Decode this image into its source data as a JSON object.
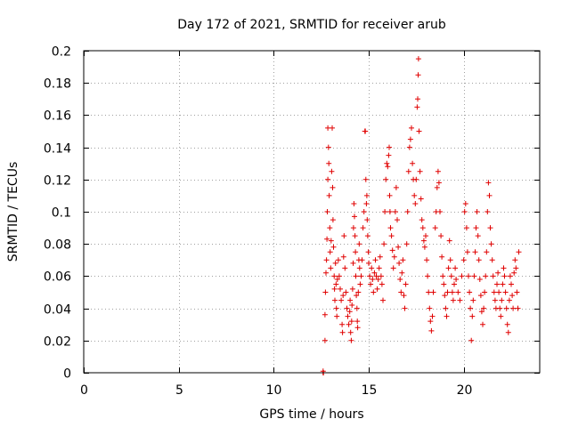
{
  "chart_data": {
    "type": "scatter",
    "title": "Day 172 of 2021, SRMTID for receiver arub",
    "xlabel": "GPS time / hours",
    "ylabel": "SRMTID / TECUs",
    "xlim": [
      0,
      24
    ],
    "ylim": [
      0,
      0.2
    ],
    "x_ticks": [
      0,
      5,
      10,
      15,
      20
    ],
    "x_tick_labels": [
      "0",
      "5",
      "10",
      "15",
      "20"
    ],
    "y_ticks": [
      0,
      0.02,
      0.04,
      0.06,
      0.08,
      0.1,
      0.12,
      0.14,
      0.16,
      0.18,
      0.2
    ],
    "y_tick_labels": [
      "0",
      "0.02",
      "0.04",
      "0.06",
      "0.08",
      "0.1",
      "0.12",
      "0.14",
      "0.16",
      "0.18",
      "0.2"
    ],
    "grid": true,
    "marker": "plus",
    "color": "#e00000",
    "series": [
      {
        "name": "SRMTID",
        "points": [
          [
            12.6,
            0.0
          ],
          [
            12.6,
            0.001
          ],
          [
            12.62,
            0.0
          ],
          [
            12.7,
            0.02
          ],
          [
            12.7,
            0.036
          ],
          [
            12.72,
            0.05
          ],
          [
            12.75,
            0.062
          ],
          [
            12.78,
            0.07
          ],
          [
            12.8,
            0.083
          ],
          [
            12.82,
            0.1
          ],
          [
            12.85,
            0.12
          ],
          [
            12.85,
            0.152
          ],
          [
            12.88,
            0.14
          ],
          [
            12.9,
            0.13
          ],
          [
            12.92,
            0.11
          ],
          [
            12.95,
            0.09
          ],
          [
            12.97,
            0.075
          ],
          [
            13.0,
            0.065
          ],
          [
            13.02,
            0.082
          ],
          [
            13.05,
            0.125
          ],
          [
            13.08,
            0.152
          ],
          [
            13.1,
            0.115
          ],
          [
            13.12,
            0.095
          ],
          [
            13.15,
            0.078
          ],
          [
            13.18,
            0.06
          ],
          [
            13.2,
            0.052
          ],
          [
            13.22,
            0.045
          ],
          [
            13.25,
            0.068
          ],
          [
            13.28,
            0.055
          ],
          [
            13.3,
            0.04
          ],
          [
            13.32,
            0.035
          ],
          [
            13.35,
            0.058
          ],
          [
            13.4,
            0.07
          ],
          [
            13.45,
            0.06
          ],
          [
            13.5,
            0.052
          ],
          [
            13.55,
            0.045
          ],
          [
            13.6,
            0.03
          ],
          [
            13.62,
            0.025
          ],
          [
            13.65,
            0.048
          ],
          [
            13.68,
            0.072
          ],
          [
            13.7,
            0.085
          ],
          [
            13.75,
            0.065
          ],
          [
            13.8,
            0.05
          ],
          [
            13.85,
            0.04
          ],
          [
            13.9,
            0.035
          ],
          [
            13.95,
            0.03
          ],
          [
            14.0,
            0.038
          ],
          [
            14.02,
            0.045
          ],
          [
            14.05,
            0.025
          ],
          [
            14.08,
            0.02
          ],
          [
            14.1,
            0.032
          ],
          [
            14.12,
            0.042
          ],
          [
            14.15,
            0.052
          ],
          [
            14.18,
            0.068
          ],
          [
            14.2,
            0.09
          ],
          [
            14.22,
            0.105
          ],
          [
            14.25,
            0.097
          ],
          [
            14.28,
            0.085
          ],
          [
            14.3,
            0.075
          ],
          [
            14.32,
            0.06
          ],
          [
            14.35,
            0.048
          ],
          [
            14.38,
            0.04
          ],
          [
            14.4,
            0.032
          ],
          [
            14.42,
            0.028
          ],
          [
            14.45,
            0.05
          ],
          [
            14.48,
            0.07
          ],
          [
            14.5,
            0.08
          ],
          [
            14.52,
            0.065
          ],
          [
            14.55,
            0.055
          ],
          [
            14.6,
            0.06
          ],
          [
            14.65,
            0.07
          ],
          [
            14.7,
            0.09
          ],
          [
            14.75,
            0.1
          ],
          [
            14.8,
            0.15
          ],
          [
            14.82,
            0.15
          ],
          [
            14.85,
            0.12
          ],
          [
            14.88,
            0.105
          ],
          [
            14.9,
            0.11
          ],
          [
            14.92,
            0.095
          ],
          [
            14.95,
            0.085
          ],
          [
            14.98,
            0.075
          ],
          [
            15.0,
            0.068
          ],
          [
            15.05,
            0.06
          ],
          [
            15.1,
            0.055
          ],
          [
            15.15,
            0.065
          ],
          [
            15.2,
            0.058
          ],
          [
            15.25,
            0.05
          ],
          [
            15.3,
            0.062
          ],
          [
            15.35,
            0.07
          ],
          [
            15.4,
            0.06
          ],
          [
            15.45,
            0.052
          ],
          [
            15.5,
            0.058
          ],
          [
            15.55,
            0.065
          ],
          [
            15.6,
            0.072
          ],
          [
            15.65,
            0.06
          ],
          [
            15.7,
            0.055
          ],
          [
            15.75,
            0.045
          ],
          [
            15.8,
            0.08
          ],
          [
            15.85,
            0.1
          ],
          [
            15.9,
            0.12
          ],
          [
            15.95,
            0.13
          ],
          [
            16.0,
            0.128
          ],
          [
            16.05,
            0.135
          ],
          [
            16.08,
            0.14
          ],
          [
            16.1,
            0.11
          ],
          [
            16.12,
            0.1
          ],
          [
            16.15,
            0.09
          ],
          [
            16.2,
            0.085
          ],
          [
            16.25,
            0.076
          ],
          [
            16.3,
            0.065
          ],
          [
            16.35,
            0.072
          ],
          [
            16.4,
            0.1
          ],
          [
            16.45,
            0.115
          ],
          [
            16.5,
            0.095
          ],
          [
            16.55,
            0.078
          ],
          [
            16.6,
            0.068
          ],
          [
            16.65,
            0.058
          ],
          [
            16.7,
            0.05
          ],
          [
            16.75,
            0.062
          ],
          [
            16.8,
            0.07
          ],
          [
            16.85,
            0.048
          ],
          [
            16.9,
            0.04
          ],
          [
            16.95,
            0.055
          ],
          [
            17.0,
            0.08
          ],
          [
            17.05,
            0.1
          ],
          [
            17.1,
            0.125
          ],
          [
            17.15,
            0.14
          ],
          [
            17.2,
            0.145
          ],
          [
            17.25,
            0.152
          ],
          [
            17.3,
            0.13
          ],
          [
            17.35,
            0.12
          ],
          [
            17.4,
            0.11
          ],
          [
            17.45,
            0.105
          ],
          [
            17.5,
            0.12
          ],
          [
            17.55,
            0.165
          ],
          [
            17.58,
            0.17
          ],
          [
            17.6,
            0.185
          ],
          [
            17.62,
            0.195
          ],
          [
            17.65,
            0.15
          ],
          [
            17.7,
            0.125
          ],
          [
            17.75,
            0.108
          ],
          [
            17.8,
            0.095
          ],
          [
            17.85,
            0.09
          ],
          [
            17.9,
            0.082
          ],
          [
            17.95,
            0.078
          ],
          [
            18.0,
            0.085
          ],
          [
            18.05,
            0.07
          ],
          [
            18.1,
            0.06
          ],
          [
            18.15,
            0.05
          ],
          [
            18.2,
            0.04
          ],
          [
            18.25,
            0.032
          ],
          [
            18.3,
            0.026
          ],
          [
            18.35,
            0.035
          ],
          [
            18.4,
            0.05
          ],
          [
            18.5,
            0.09
          ],
          [
            18.55,
            0.1
          ],
          [
            18.6,
            0.115
          ],
          [
            18.65,
            0.125
          ],
          [
            18.7,
            0.118
          ],
          [
            18.75,
            0.1
          ],
          [
            18.8,
            0.085
          ],
          [
            18.85,
            0.072
          ],
          [
            18.9,
            0.06
          ],
          [
            18.95,
            0.055
          ],
          [
            19.0,
            0.048
          ],
          [
            19.05,
            0.04
          ],
          [
            19.1,
            0.035
          ],
          [
            19.15,
            0.05
          ],
          [
            19.2,
            0.065
          ],
          [
            19.25,
            0.082
          ],
          [
            19.3,
            0.07
          ],
          [
            19.35,
            0.06
          ],
          [
            19.4,
            0.05
          ],
          [
            19.45,
            0.045
          ],
          [
            19.5,
            0.055
          ],
          [
            19.55,
            0.065
          ],
          [
            19.6,
            0.058
          ],
          [
            19.7,
            0.05
          ],
          [
            19.8,
            0.045
          ],
          [
            19.9,
            0.06
          ],
          [
            20.0,
            0.07
          ],
          [
            20.05,
            0.1
          ],
          [
            20.1,
            0.105
          ],
          [
            20.15,
            0.09
          ],
          [
            20.2,
            0.075
          ],
          [
            20.25,
            0.06
          ],
          [
            20.3,
            0.05
          ],
          [
            20.35,
            0.04
          ],
          [
            20.4,
            0.02
          ],
          [
            20.45,
            0.035
          ],
          [
            20.5,
            0.045
          ],
          [
            20.55,
            0.06
          ],
          [
            20.6,
            0.075
          ],
          [
            20.65,
            0.09
          ],
          [
            20.7,
            0.1
          ],
          [
            20.75,
            0.085
          ],
          [
            20.8,
            0.07
          ],
          [
            20.85,
            0.058
          ],
          [
            20.9,
            0.048
          ],
          [
            20.95,
            0.038
          ],
          [
            21.0,
            0.03
          ],
          [
            21.05,
            0.04
          ],
          [
            21.1,
            0.05
          ],
          [
            21.15,
            0.06
          ],
          [
            21.2,
            0.075
          ],
          [
            21.25,
            0.1
          ],
          [
            21.3,
            0.118
          ],
          [
            21.35,
            0.11
          ],
          [
            21.4,
            0.09
          ],
          [
            21.45,
            0.08
          ],
          [
            21.5,
            0.07
          ],
          [
            21.55,
            0.06
          ],
          [
            21.6,
            0.05
          ],
          [
            21.65,
            0.045
          ],
          [
            21.7,
            0.04
          ],
          [
            21.75,
            0.055
          ],
          [
            21.8,
            0.062
          ],
          [
            21.85,
            0.05
          ],
          [
            21.9,
            0.04
          ],
          [
            21.95,
            0.035
          ],
          [
            22.0,
            0.045
          ],
          [
            22.05,
            0.055
          ],
          [
            22.1,
            0.065
          ],
          [
            22.15,
            0.06
          ],
          [
            22.2,
            0.05
          ],
          [
            22.25,
            0.04
          ],
          [
            22.3,
            0.03
          ],
          [
            22.35,
            0.025
          ],
          [
            22.4,
            0.045
          ],
          [
            22.45,
            0.06
          ],
          [
            22.5,
            0.055
          ],
          [
            22.55,
            0.048
          ],
          [
            22.6,
            0.04
          ],
          [
            22.65,
            0.062
          ],
          [
            22.7,
            0.07
          ],
          [
            22.75,
            0.065
          ],
          [
            22.8,
            0.05
          ],
          [
            22.85,
            0.04
          ],
          [
            22.9,
            0.075
          ]
        ]
      }
    ]
  }
}
